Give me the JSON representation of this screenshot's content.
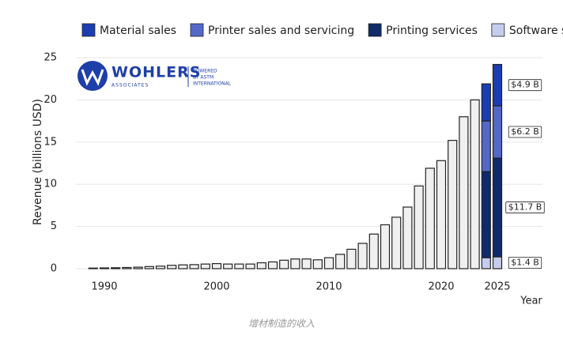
{
  "chart_data": {
    "type": "bar",
    "x": [
      1989,
      1990,
      1991,
      1992,
      1993,
      1994,
      1995,
      1996,
      1997,
      1998,
      1999,
      2000,
      2001,
      2002,
      2003,
      2004,
      2005,
      2006,
      2007,
      2008,
      2009,
      2010,
      2011,
      2012,
      2013,
      2014,
      2015,
      2016,
      2017,
      2018,
      2019,
      2020,
      2021,
      2022,
      2023,
      2024,
      2025
    ],
    "values": [
      0.07,
      0.09,
      0.11,
      0.14,
      0.18,
      0.25,
      0.3,
      0.4,
      0.45,
      0.48,
      0.55,
      0.6,
      0.55,
      0.55,
      0.55,
      0.7,
      0.8,
      1.0,
      1.15,
      1.15,
      1.05,
      1.3,
      1.7,
      2.3,
      3.0,
      4.1,
      5.2,
      6.1,
      7.3,
      9.8,
      11.9,
      12.8,
      15.2,
      18.0,
      20.0,
      null,
      null
    ],
    "color": "#f0f0f0",
    "series": [
      {
        "name": "Material sales",
        "color": "#1b3db3",
        "values": [
          null,
          null,
          null,
          null,
          null,
          null,
          null,
          null,
          null,
          null,
          null,
          null,
          null,
          null,
          null,
          null,
          null,
          null,
          null,
          null,
          null,
          null,
          null,
          null,
          null,
          null,
          null,
          null,
          null,
          null,
          null,
          null,
          null,
          null,
          null,
          4.4,
          4.9
        ],
        "value_labels": [
          null,
          null,
          null,
          null,
          null,
          null,
          null,
          null,
          null,
          null,
          null,
          null,
          null,
          null,
          null,
          null,
          null,
          null,
          null,
          null,
          null,
          null,
          null,
          null,
          null,
          null,
          null,
          null,
          null,
          null,
          null,
          null,
          null,
          null,
          null,
          null,
          "$4.9 B"
        ]
      },
      {
        "name": "Printer sales and servicing",
        "color": "#5468c8",
        "values": [
          null,
          null,
          null,
          null,
          null,
          null,
          null,
          null,
          null,
          null,
          null,
          null,
          null,
          null,
          null,
          null,
          null,
          null,
          null,
          null,
          null,
          null,
          null,
          null,
          null,
          null,
          null,
          null,
          null,
          null,
          null,
          null,
          null,
          null,
          null,
          6.0,
          6.2
        ],
        "value_labels": [
          null,
          null,
          null,
          null,
          null,
          null,
          null,
          null,
          null,
          null,
          null,
          null,
          null,
          null,
          null,
          null,
          null,
          null,
          null,
          null,
          null,
          null,
          null,
          null,
          null,
          null,
          null,
          null,
          null,
          null,
          null,
          null,
          null,
          null,
          null,
          null,
          "$6.2 B"
        ]
      },
      {
        "name": "Printing services",
        "color": "#0f2b6b",
        "values": [
          null,
          null,
          null,
          null,
          null,
          null,
          null,
          null,
          null,
          null,
          null,
          null,
          null,
          null,
          null,
          null,
          null,
          null,
          null,
          null,
          null,
          null,
          null,
          null,
          null,
          null,
          null,
          null,
          null,
          null,
          null,
          null,
          null,
          null,
          null,
          10.2,
          11.7
        ],
        "value_labels": [
          null,
          null,
          null,
          null,
          null,
          null,
          null,
          null,
          null,
          null,
          null,
          null,
          null,
          null,
          null,
          null,
          null,
          null,
          null,
          null,
          null,
          null,
          null,
          null,
          null,
          null,
          null,
          null,
          null,
          null,
          null,
          null,
          null,
          null,
          null,
          null,
          "$11.7 B"
        ]
      },
      {
        "name": "Software sales",
        "color": "#c6ccee",
        "values": [
          null,
          null,
          null,
          null,
          null,
          null,
          null,
          null,
          null,
          null,
          null,
          null,
          null,
          null,
          null,
          null,
          null,
          null,
          null,
          null,
          null,
          null,
          null,
          null,
          null,
          null,
          null,
          null,
          null,
          null,
          null,
          null,
          null,
          null,
          null,
          1.3,
          1.4
        ],
        "value_labels": [
          null,
          null,
          null,
          null,
          null,
          null,
          null,
          null,
          null,
          null,
          null,
          null,
          null,
          null,
          null,
          null,
          null,
          null,
          null,
          null,
          null,
          null,
          null,
          null,
          null,
          null,
          null,
          null,
          null,
          null,
          null,
          null,
          null,
          null,
          null,
          null,
          "$1.4 B"
        ]
      }
    ],
    "xlabel": "Year",
    "ylabel": "Revenue (billions USD)",
    "xlim": [
      1987.5,
      2026.5
    ],
    "xticks": [
      1990,
      2000,
      2010,
      2020,
      2025
    ],
    "ylim": [
      0,
      25
    ],
    "yticks": [
      0,
      5,
      10,
      15,
      20,
      25
    ],
    "grid": true,
    "legend": "top"
  },
  "logo": {
    "name": "WOHLERS",
    "sub": "ASSOCIATES",
    "powered": [
      "POWERED",
      "BY ASTM",
      "INTERNATIONAL"
    ]
  },
  "caption": "增材制造的收入"
}
